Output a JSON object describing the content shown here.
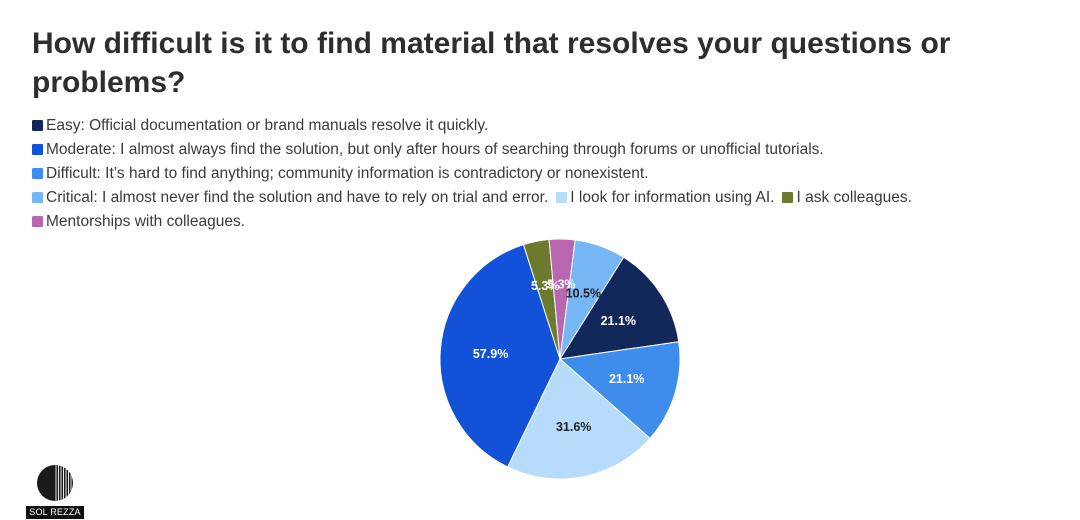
{
  "chart_data": {
    "type": "pie",
    "title": "How difficult is it to find material that resolves your questions or problems?",
    "legend_position": "top-left",
    "slices": [
      {
        "name": "Easy: Official documentation or brand manuals resolve it quickly.",
        "value": 21.1,
        "label": "21.1%",
        "color": "#13285a",
        "label_color": "#ffffff"
      },
      {
        "name": "Difficult: It’s hard to find anything; community information is contradictory or nonexistent.",
        "value": 21.1,
        "label": "21.1%",
        "color": "#3e8ded",
        "label_color": "#ffffff"
      },
      {
        "name": "I look for information using AI.",
        "value": 31.6,
        "label": "31.6%",
        "color": "#b7dcfb",
        "label_color": "#222222"
      },
      {
        "name": "Moderate: I almost always find the solution, but only after hours of searching through forums or unofficial tutorials.",
        "value": 57.9,
        "label": "57.9%",
        "color": "#1252d8",
        "label_color": "#ffffff"
      },
      {
        "name": "I ask colleagues.",
        "value": 5.3,
        "label": "5.3%",
        "color": "#6c7a2e",
        "label_color": "#ffffff"
      },
      {
        "name": "Mentorships with colleagues.",
        "value": 5.3,
        "label": "5.3%",
        "color": "#b866b0",
        "label_color": "#ffffff"
      },
      {
        "name": "Critical: I almost never find the solution and have to rely on trial and error.",
        "value": 10.5,
        "label": "10.5%",
        "color": "#76b6f5",
        "label_color": "#222222"
      }
    ],
    "legend": [
      [
        "Easy: Official documentation or brand manuals resolve it quickly."
      ],
      [
        "Moderate: I almost always find the solution, but only after hours of searching through forums or unofficial tutorials."
      ],
      [
        "Difficult: It’s hard to find anything; community information is contradictory or nonexistent."
      ],
      [
        "Critical: I almost never find the solution and have to rely on trial and error.",
        "I look for information using AI.",
        "I ask colleagues."
      ],
      [
        "Mentorships with colleagues."
      ]
    ]
  },
  "brand": {
    "logo_text": "SOL REZZA"
  }
}
